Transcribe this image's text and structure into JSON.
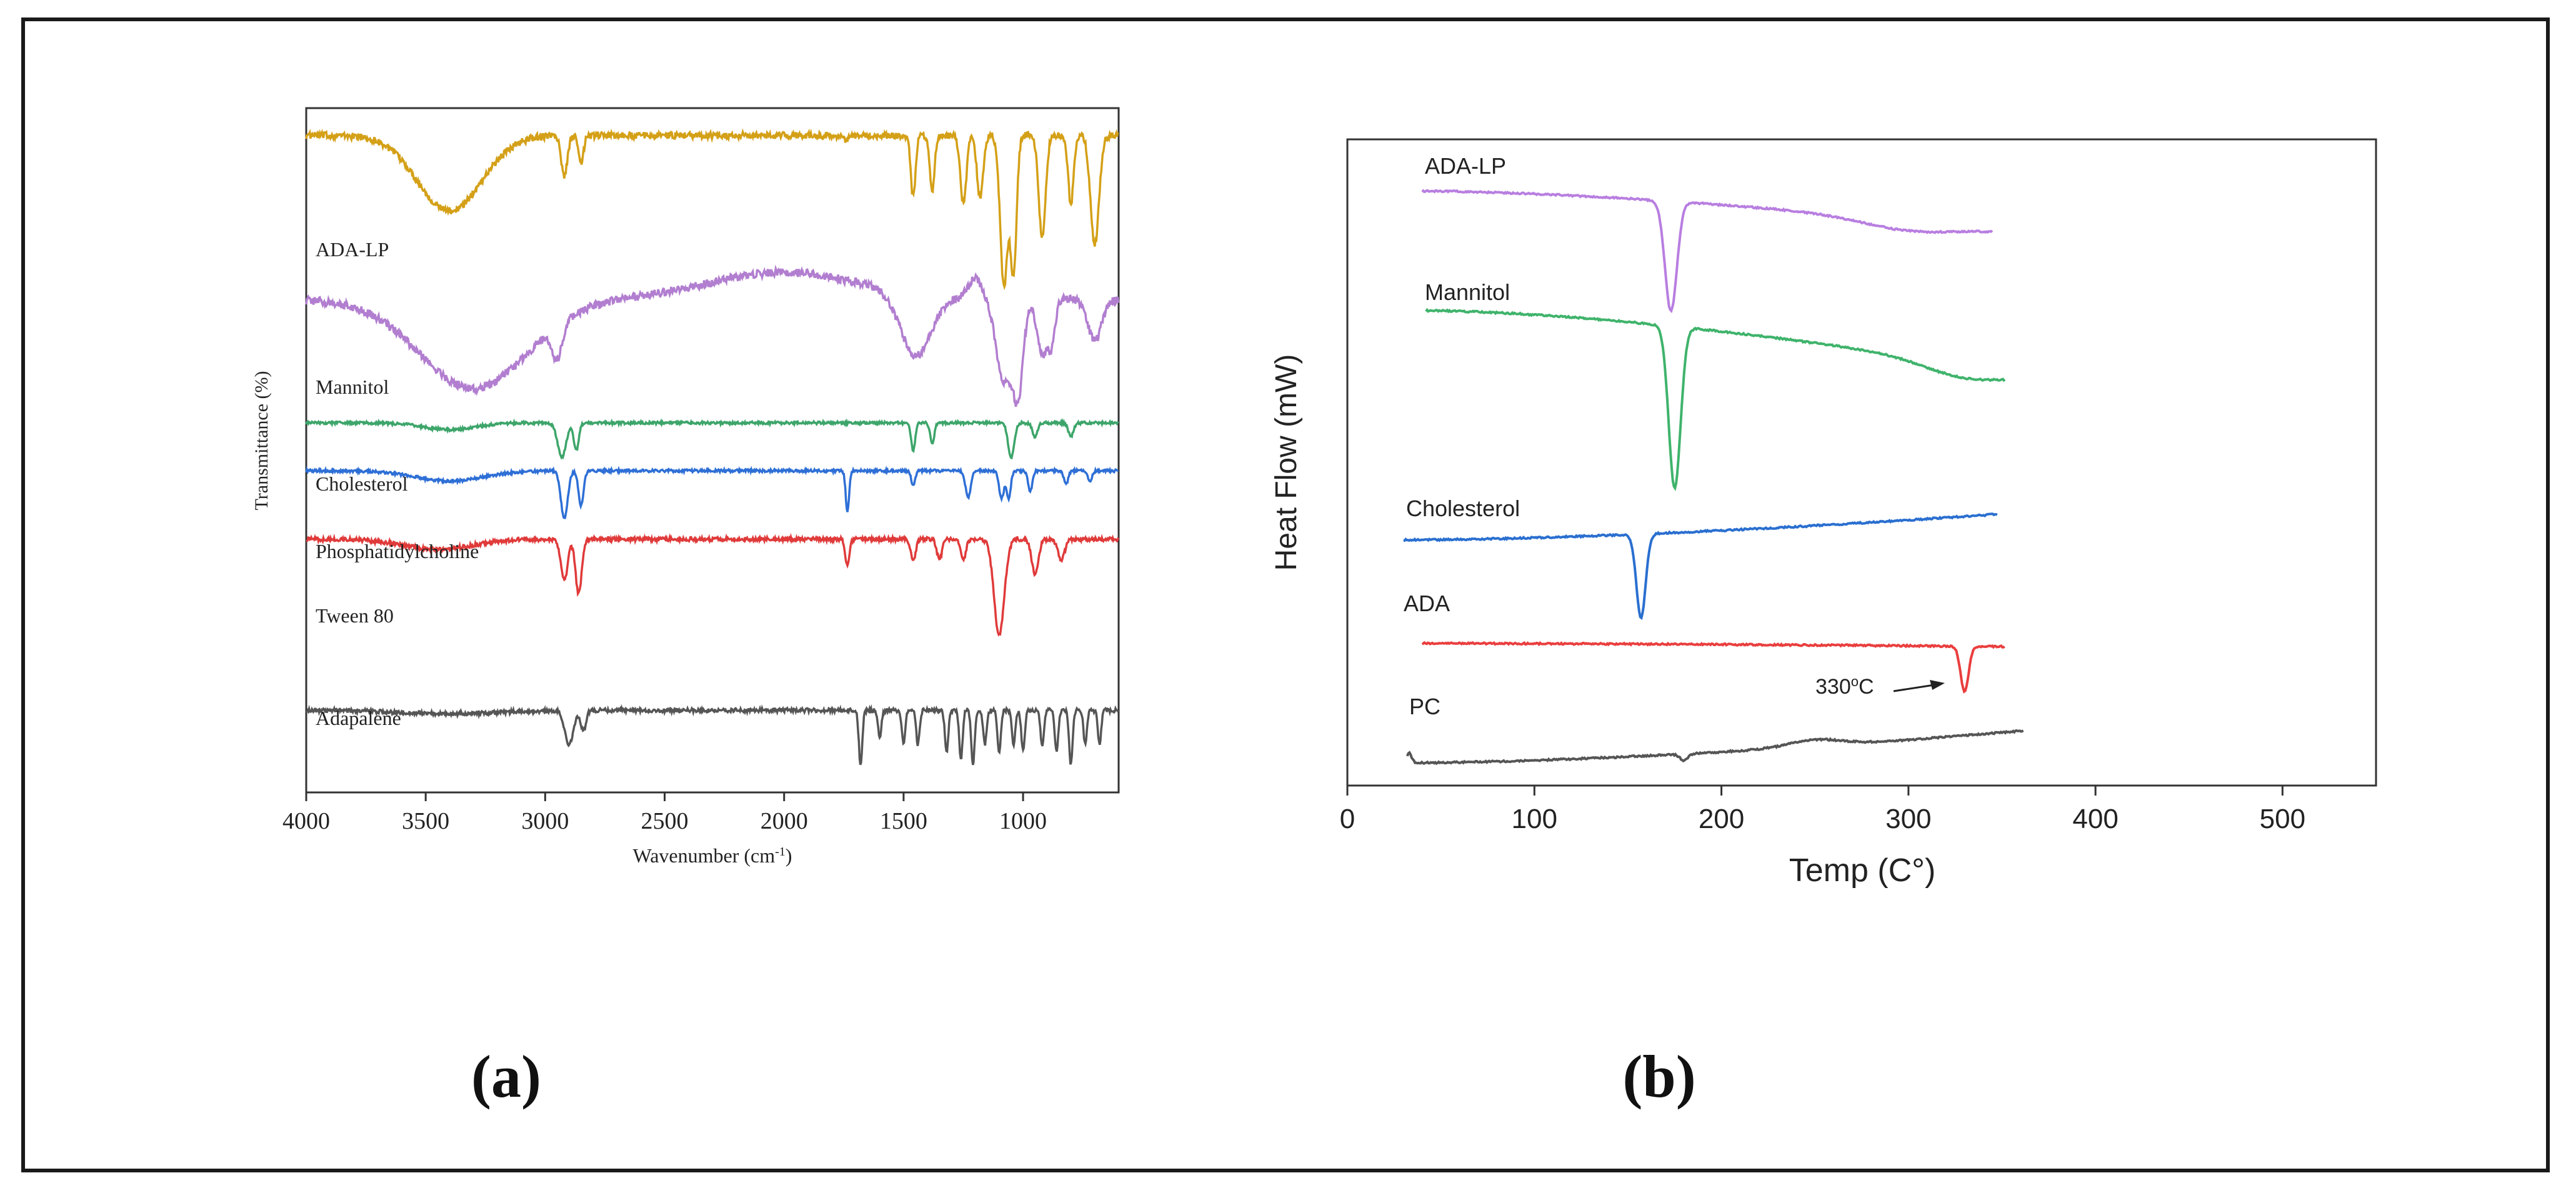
{
  "panel_labels": {
    "a": "(a)",
    "b": "(b)"
  },
  "chart_data": [
    {
      "type": "line",
      "title": "",
      "xlabel": "Wavenumber (cm",
      "xlabel_superscript": "-1",
      "xlabel_suffix": ")",
      "ylabel": "Transmittance (%)",
      "xlim": [
        4000,
        600
      ],
      "ylim": [
        0,
        100
      ],
      "x_ticks": [
        "4000",
        "3500",
        "3000",
        "2500",
        "2000",
        "1500",
        "1000"
      ],
      "x_tick_values": [
        4000,
        3500,
        3000,
        2500,
        2000,
        1500,
        1000
      ],
      "series": [
        {
          "name": "ADA-LP",
          "color": "#d4a017",
          "baseline": 96,
          "features": [
            [
              3400,
              -11,
              190
            ],
            [
              2920,
              -6,
              18
            ],
            [
              2850,
              -4,
              15
            ],
            [
              1740,
              -1,
              12
            ],
            [
              1460,
              -9,
              14
            ],
            [
              1380,
              -8,
              14
            ],
            [
              1250,
              -10,
              18
            ],
            [
              1180,
              -9,
              18
            ],
            [
              1080,
              -22,
              22
            ],
            [
              1040,
              -20,
              18
            ],
            [
              920,
              -15,
              20
            ],
            [
              800,
              -10,
              16
            ],
            [
              700,
              -16,
              25
            ]
          ],
          "noise": 1.0
        },
        {
          "name": "Mannitol",
          "color": "#b27ed0",
          "baseline": 72,
          "features": [
            [
              3300,
              -13,
              320
            ],
            [
              2950,
              -5,
              30
            ],
            [
              2000,
              4,
              450
            ],
            [
              1450,
              -9,
              90
            ],
            [
              1200,
              3,
              40
            ],
            [
              1080,
              -12,
              45
            ],
            [
              1020,
              -13,
              30
            ],
            [
              920,
              -8,
              30
            ],
            [
              880,
              -6,
              20
            ],
            [
              700,
              -6,
              40
            ]
          ],
          "noise": 1.2
        },
        {
          "name": "Cholesterol",
          "color": "#3da56a",
          "baseline": 54,
          "features": [
            [
              3400,
              -1,
              150
            ],
            [
              2930,
              -5,
              25
            ],
            [
              2870,
              -4,
              15
            ],
            [
              1460,
              -4,
              12
            ],
            [
              1380,
              -3,
              12
            ],
            [
              1050,
              -5,
              18
            ],
            [
              950,
              -2,
              15
            ],
            [
              800,
              -2,
              15
            ]
          ],
          "noise": 0.4
        },
        {
          "name": "Phosphatidylcholine",
          "color": "#2e6fd6",
          "baseline": 47,
          "features": [
            [
              3400,
              -1.5,
              200
            ],
            [
              2920,
              -7,
              20
            ],
            [
              2850,
              -5,
              15
            ],
            [
              1735,
              -6,
              10
            ],
            [
              1460,
              -2,
              12
            ],
            [
              1230,
              -4,
              15
            ],
            [
              1090,
              -4,
              15
            ],
            [
              1060,
              -4,
              12
            ],
            [
              970,
              -3,
              12
            ],
            [
              820,
              -2,
              12
            ],
            [
              720,
              -1.5,
              12
            ]
          ],
          "noise": 0.4
        },
        {
          "name": "Tween 80",
          "color": "#e03a3a",
          "baseline": 37,
          "features": [
            [
              3450,
              -1.5,
              200
            ],
            [
              2920,
              -6,
              20
            ],
            [
              2860,
              -8,
              18
            ],
            [
              1735,
              -4,
              12
            ],
            [
              1460,
              -3,
              15
            ],
            [
              1350,
              -3,
              15
            ],
            [
              1250,
              -3,
              15
            ],
            [
              1100,
              -14,
              30
            ],
            [
              950,
              -5,
              20
            ],
            [
              840,
              -3,
              20
            ]
          ],
          "noise": 0.6
        },
        {
          "name": "Adapalene",
          "color": "#555555",
          "baseline": 12,
          "features": [
            [
              3400,
              -0.5,
              300
            ],
            [
              2900,
              -5,
              25
            ],
            [
              2840,
              -3,
              15
            ],
            [
              1680,
              -8,
              10
            ],
            [
              1600,
              -4,
              10
            ],
            [
              1500,
              -5,
              10
            ],
            [
              1440,
              -5,
              10
            ],
            [
              1320,
              -6,
              10
            ],
            [
              1260,
              -7,
              10
            ],
            [
              1210,
              -8,
              10
            ],
            [
              1160,
              -5,
              10
            ],
            [
              1100,
              -6,
              10
            ],
            [
              1040,
              -5,
              10
            ],
            [
              1000,
              -6,
              10
            ],
            [
              920,
              -5,
              10
            ],
            [
              860,
              -6,
              10
            ],
            [
              800,
              -8,
              10
            ],
            [
              740,
              -5,
              10
            ],
            [
              680,
              -5,
              10
            ]
          ],
          "noise": 0.6
        }
      ]
    },
    {
      "type": "line",
      "title": "",
      "xlabel": "Temp (C°)",
      "ylabel": "Heat Flow (mW)",
      "xlim": [
        0,
        550
      ],
      "ylim": [
        0,
        100
      ],
      "x_ticks": [
        "0",
        "100",
        "200",
        "300",
        "400",
        "500"
      ],
      "x_tick_values": [
        0,
        100,
        200,
        300,
        400,
        500
      ],
      "annotation": {
        "text": "330",
        "superscript": "o",
        "suffix": "C",
        "target_x": 330
      },
      "series": [
        {
          "name": "ADA-LP",
          "color": "#b87ee0",
          "x_start": 40,
          "x_end": 345,
          "start_level": 92,
          "end_level": 86,
          "features": [
            [
              173,
              -17,
              4.5
            ],
            [
              300,
              -1.5,
              35
            ]
          ]
        },
        {
          "name": "Mannitol",
          "color": "#3fb36b",
          "x_start": 42,
          "x_end": 352,
          "start_level": 73.5,
          "end_level": 64,
          "features": [
            [
              175,
              -25,
              4.5
            ],
            [
              330,
              -2,
              30
            ]
          ]
        },
        {
          "name": "Cholesterol",
          "color": "#2a6fd0",
          "x_start": 30,
          "x_end": 348,
          "start_level": 38,
          "end_level": 42,
          "features": [
            [
              157,
              -13,
              3.5
            ]
          ]
        },
        {
          "name": "ADA",
          "color": "#ea3e3e",
          "x_start": 40,
          "x_end": 352,
          "start_level": 22,
          "end_level": 21.5,
          "features": [
            [
              330,
              -7,
              3
            ]
          ]
        },
        {
          "name": "PC",
          "color": "#555555",
          "x_start": 32,
          "x_end": 362,
          "start_level": 3.5,
          "end_level": 8.5,
          "features": [
            [
              33,
              1.5,
              2
            ],
            [
              180,
              -1,
              3
            ],
            [
              250,
              1,
              20
            ]
          ]
        }
      ]
    }
  ]
}
